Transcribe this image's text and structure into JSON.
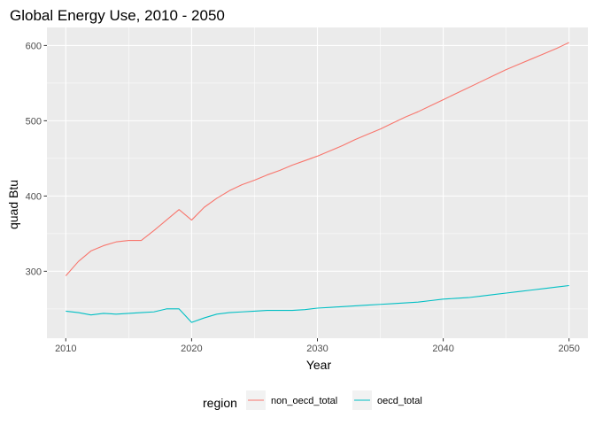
{
  "chart_data": {
    "type": "line",
    "title": "Global Energy Use, 2010 - 2050",
    "xlabel": "Year",
    "ylabel": "quad Btu",
    "xlim": [
      2008.5,
      2051.5
    ],
    "ylim": [
      211,
      624
    ],
    "x_ticks": [
      2010,
      2020,
      2030,
      2040,
      2050
    ],
    "y_ticks": [
      300,
      400,
      500,
      600
    ],
    "grid": true,
    "background": "#ebebeb",
    "legend": {
      "title": "region",
      "position": "bottom"
    },
    "series": [
      {
        "name": "non_oecd_total",
        "color": "#f8766d",
        "x": [
          2010,
          2011,
          2012,
          2013,
          2014,
          2015,
          2016,
          2017,
          2018,
          2019,
          2020,
          2021,
          2022,
          2023,
          2024,
          2025,
          2026,
          2027,
          2028,
          2029,
          2030,
          2031,
          2032,
          2033,
          2034,
          2035,
          2036,
          2037,
          2038,
          2039,
          2040,
          2041,
          2042,
          2043,
          2044,
          2045,
          2046,
          2047,
          2048,
          2049,
          2050
        ],
        "values": [
          294,
          313,
          327,
          334,
          339,
          341,
          341,
          354,
          368,
          382,
          368,
          385,
          397,
          407,
          415,
          421,
          428,
          434,
          441,
          447,
          453,
          460,
          467,
          475,
          482,
          489,
          497,
          505,
          512,
          520,
          528,
          536,
          544,
          552,
          560,
          568,
          575,
          582,
          589,
          596,
          604
        ]
      },
      {
        "name": "oecd_total",
        "color": "#00bfc4",
        "x": [
          2010,
          2011,
          2012,
          2013,
          2014,
          2015,
          2016,
          2017,
          2018,
          2019,
          2020,
          2021,
          2022,
          2023,
          2024,
          2025,
          2026,
          2027,
          2028,
          2029,
          2030,
          2031,
          2032,
          2033,
          2034,
          2035,
          2036,
          2037,
          2038,
          2039,
          2040,
          2041,
          2042,
          2043,
          2044,
          2045,
          2046,
          2047,
          2048,
          2049,
          2050
        ],
        "values": [
          247,
          245,
          242,
          244,
          243,
          244,
          245,
          246,
          250,
          250,
          232,
          238,
          243,
          245,
          246,
          247,
          248,
          248,
          248,
          249,
          251,
          252,
          253,
          254,
          255,
          256,
          257,
          258,
          259,
          261,
          263,
          264,
          265,
          267,
          269,
          271,
          273,
          275,
          277,
          279,
          281
        ]
      }
    ]
  }
}
